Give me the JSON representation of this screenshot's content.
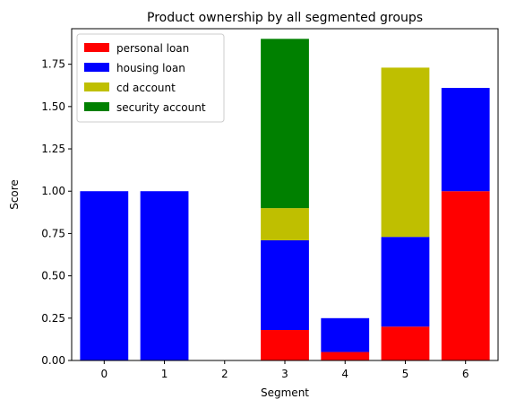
{
  "chart_data": {
    "type": "bar",
    "stacked": true,
    "title": "Product ownership by all segmented groups",
    "xlabel": "Segment",
    "ylabel": "Score",
    "categories": [
      "0",
      "1",
      "2",
      "3",
      "4",
      "5",
      "6"
    ],
    "ylim": [
      0,
      1.96
    ],
    "yticks": [
      "0.00",
      "0.25",
      "0.50",
      "0.75",
      "1.00",
      "1.25",
      "1.50",
      "1.75"
    ],
    "grid": false,
    "legend_position": "top-left",
    "series": [
      {
        "name": "personal loan",
        "color": "#ff0000",
        "values": [
          0,
          0,
          0,
          0.18,
          0.05,
          0.2,
          1.0
        ]
      },
      {
        "name": "housing loan",
        "color": "#0000ff",
        "values": [
          1.0,
          1.0,
          0,
          0.53,
          0.2,
          0.53,
          0.61
        ]
      },
      {
        "name": "cd account",
        "color": "#bfbf00",
        "values": [
          0,
          0,
          0,
          0.19,
          0,
          1.0,
          0
        ]
      },
      {
        "name": "security account",
        "color": "#008000",
        "values": [
          0,
          0,
          0,
          1.0,
          0,
          0,
          0
        ]
      }
    ]
  }
}
